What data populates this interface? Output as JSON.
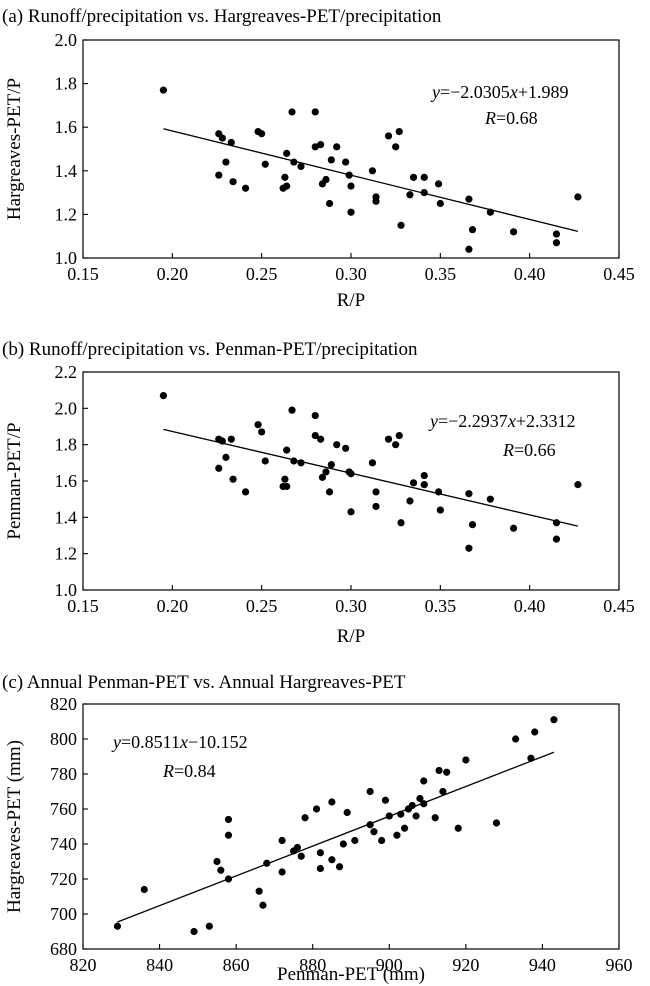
{
  "chart_data": [
    {
      "type": "scatter",
      "title": "(a) Runoff/precipitation vs. Hargreaves-PET/precipitation",
      "xlabel": "R/P",
      "ylabel": "Hargreaves-PET/P",
      "xlim": [
        0.15,
        0.45
      ],
      "ylim": [
        1.0,
        2.0
      ],
      "xticks": [
        "0.15",
        "0.20",
        "0.25",
        "0.30",
        "0.35",
        "0.40",
        "0.45"
      ],
      "yticks": [
        "1.0",
        "1.2",
        "1.4",
        "1.6",
        "1.8",
        "2.0"
      ],
      "fit": {
        "slope": -2.0305,
        "intercept": 1.989
      },
      "equation_y": "y",
      "equation_rest": "=−2.0305",
      "equation_x": "x",
      "equation_tail": "+1.989",
      "r_label": "R",
      "r_value": "=0.68",
      "points": [
        [
          0.195,
          1.77
        ],
        [
          0.226,
          1.57
        ],
        [
          0.226,
          1.38
        ],
        [
          0.228,
          1.55
        ],
        [
          0.23,
          1.44
        ],
        [
          0.233,
          1.53
        ],
        [
          0.234,
          1.35
        ],
        [
          0.241,
          1.32
        ],
        [
          0.248,
          1.58
        ],
        [
          0.25,
          1.57
        ],
        [
          0.252,
          1.43
        ],
        [
          0.262,
          1.32
        ],
        [
          0.263,
          1.37
        ],
        [
          0.264,
          1.48
        ],
        [
          0.264,
          1.33
        ],
        [
          0.267,
          1.67
        ],
        [
          0.268,
          1.44
        ],
        [
          0.272,
          1.42
        ],
        [
          0.28,
          1.67
        ],
        [
          0.28,
          1.51
        ],
        [
          0.283,
          1.52
        ],
        [
          0.284,
          1.34
        ],
        [
          0.286,
          1.36
        ],
        [
          0.288,
          1.25
        ],
        [
          0.289,
          1.45
        ],
        [
          0.292,
          1.51
        ],
        [
          0.297,
          1.44
        ],
        [
          0.299,
          1.38
        ],
        [
          0.3,
          1.21
        ],
        [
          0.3,
          1.33
        ],
        [
          0.312,
          1.4
        ],
        [
          0.314,
          1.28
        ],
        [
          0.314,
          1.26
        ],
        [
          0.321,
          1.56
        ],
        [
          0.325,
          1.51
        ],
        [
          0.327,
          1.58
        ],
        [
          0.328,
          1.15
        ],
        [
          0.333,
          1.29
        ],
        [
          0.335,
          1.37
        ],
        [
          0.341,
          1.37
        ],
        [
          0.341,
          1.3
        ],
        [
          0.349,
          1.34
        ],
        [
          0.35,
          1.25
        ],
        [
          0.366,
          1.27
        ],
        [
          0.366,
          1.04
        ],
        [
          0.368,
          1.13
        ],
        [
          0.378,
          1.21
        ],
        [
          0.391,
          1.12
        ],
        [
          0.415,
          1.11
        ],
        [
          0.415,
          1.07
        ],
        [
          0.427,
          1.28
        ]
      ]
    },
    {
      "type": "scatter",
      "title": "(b) Runoff/precipitation vs. Penman-PET/precipitation",
      "xlabel": "R/P",
      "ylabel": "Penman-PET/P",
      "xlim": [
        0.15,
        0.45
      ],
      "ylim": [
        1.0,
        2.2
      ],
      "xticks": [
        "0.15",
        "0.20",
        "0.25",
        "0.30",
        "0.35",
        "0.40",
        "0.45"
      ],
      "yticks": [
        "1.0",
        "1.2",
        "1.4",
        "1.6",
        "1.8",
        "2.0",
        "2.2"
      ],
      "fit": {
        "slope": -2.2937,
        "intercept": 2.3312
      },
      "equation_y": "y",
      "equation_rest": "=−2.2937",
      "equation_x": "x",
      "equation_tail": "+2.3312",
      "r_label": "R",
      "r_value": "=0.66",
      "points": [
        [
          0.195,
          2.07
        ],
        [
          0.226,
          1.83
        ],
        [
          0.226,
          1.67
        ],
        [
          0.228,
          1.82
        ],
        [
          0.23,
          1.73
        ],
        [
          0.233,
          1.83
        ],
        [
          0.234,
          1.61
        ],
        [
          0.241,
          1.54
        ],
        [
          0.248,
          1.91
        ],
        [
          0.25,
          1.87
        ],
        [
          0.252,
          1.71
        ],
        [
          0.262,
          1.57
        ],
        [
          0.263,
          1.61
        ],
        [
          0.264,
          1.77
        ],
        [
          0.264,
          1.57
        ],
        [
          0.267,
          1.99
        ],
        [
          0.268,
          1.71
        ],
        [
          0.272,
          1.7
        ],
        [
          0.28,
          1.96
        ],
        [
          0.28,
          1.85
        ],
        [
          0.283,
          1.83
        ],
        [
          0.284,
          1.62
        ],
        [
          0.286,
          1.65
        ],
        [
          0.288,
          1.54
        ],
        [
          0.289,
          1.69
        ],
        [
          0.292,
          1.8
        ],
        [
          0.297,
          1.78
        ],
        [
          0.299,
          1.65
        ],
        [
          0.3,
          1.43
        ],
        [
          0.3,
          1.64
        ],
        [
          0.312,
          1.7
        ],
        [
          0.314,
          1.54
        ],
        [
          0.314,
          1.46
        ],
        [
          0.321,
          1.83
        ],
        [
          0.325,
          1.8
        ],
        [
          0.327,
          1.85
        ],
        [
          0.328,
          1.37
        ],
        [
          0.333,
          1.49
        ],
        [
          0.335,
          1.59
        ],
        [
          0.341,
          1.63
        ],
        [
          0.341,
          1.58
        ],
        [
          0.349,
          1.54
        ],
        [
          0.35,
          1.44
        ],
        [
          0.366,
          1.53
        ],
        [
          0.366,
          1.23
        ],
        [
          0.368,
          1.36
        ],
        [
          0.378,
          1.5
        ],
        [
          0.391,
          1.34
        ],
        [
          0.415,
          1.37
        ],
        [
          0.415,
          1.28
        ],
        [
          0.427,
          1.58
        ]
      ]
    },
    {
      "type": "scatter",
      "title": "(c) Annual Penman-PET vs. Annual Hargreaves-PET",
      "xlabel": "Penman-PET (mm)",
      "ylabel": "Hargreaves-PET (mm)",
      "xlim": [
        820,
        960
      ],
      "ylim": [
        680,
        820
      ],
      "xticks": [
        "820",
        "840",
        "860",
        "880",
        "900",
        "920",
        "940",
        "960"
      ],
      "yticks": [
        "680",
        "700",
        "720",
        "740",
        "760",
        "780",
        "800",
        "820"
      ],
      "fit": {
        "slope": 0.8511,
        "intercept": -10.152
      },
      "equation_y": "y",
      "equation_rest": "=0.8511",
      "equation_x": "x",
      "equation_tail": "−10.152",
      "r_label": "R",
      "r_value": "=0.84",
      "points": [
        [
          829,
          693
        ],
        [
          836,
          714
        ],
        [
          849,
          690
        ],
        [
          853,
          693
        ],
        [
          855,
          730
        ],
        [
          856,
          725
        ],
        [
          858,
          720
        ],
        [
          858,
          754
        ],
        [
          858,
          745
        ],
        [
          866,
          713
        ],
        [
          867,
          705
        ],
        [
          868,
          729
        ],
        [
          872,
          724
        ],
        [
          872,
          742
        ],
        [
          875,
          736
        ],
        [
          876,
          738
        ],
        [
          877,
          733
        ],
        [
          878,
          755
        ],
        [
          881,
          760
        ],
        [
          882,
          735
        ],
        [
          882,
          726
        ],
        [
          885,
          764
        ],
        [
          885,
          731
        ],
        [
          887,
          727
        ],
        [
          888,
          740
        ],
        [
          889,
          758
        ],
        [
          891,
          742
        ],
        [
          895,
          770
        ],
        [
          895,
          751
        ],
        [
          896,
          747
        ],
        [
          898,
          742
        ],
        [
          899,
          765
        ],
        [
          900,
          756
        ],
        [
          902,
          745
        ],
        [
          903,
          757
        ],
        [
          904,
          749
        ],
        [
          905,
          760
        ],
        [
          906,
          762
        ],
        [
          907,
          756
        ],
        [
          908,
          766
        ],
        [
          909,
          776
        ],
        [
          909,
          763
        ],
        [
          912,
          755
        ],
        [
          913,
          782
        ],
        [
          914,
          770
        ],
        [
          915,
          781
        ],
        [
          918,
          749
        ],
        [
          920,
          788
        ],
        [
          928,
          752
        ],
        [
          933,
          800
        ],
        [
          937,
          789
        ],
        [
          938,
          804
        ],
        [
          943,
          811
        ]
      ]
    }
  ]
}
